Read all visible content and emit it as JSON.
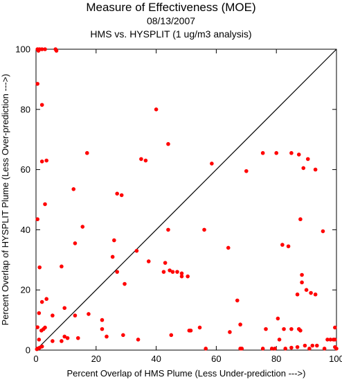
{
  "chart_data": {
    "type": "scatter",
    "title": "Measure of Effectiveness (MOE)",
    "subtitle_date": "08/13/2007",
    "subtitle": "HMS vs. HYSPLIT  (1 ug/m3 analysis)",
    "xlabel": "Percent Overlap of HMS Plume (Less Under-prediction --->)",
    "ylabel": "Percent Overlap of HYSPLIT Plume (Less Over-prediction --->)",
    "xlim": [
      0,
      100
    ],
    "ylim": [
      0,
      100
    ],
    "xticks": [
      "0",
      "20",
      "40",
      "60",
      "80",
      "100"
    ],
    "yticks": [
      "0",
      "20",
      "40",
      "60",
      "80",
      "100"
    ],
    "grid": false,
    "reference_line": "y = x",
    "marker_color": "#ff0000",
    "line_color": "#000000",
    "points": [
      [
        0.5,
        100
      ],
      [
        0.8,
        99.5
      ],
      [
        1.2,
        100
      ],
      [
        2.0,
        100
      ],
      [
        3.0,
        100
      ],
      [
        6.5,
        100
      ],
      [
        6.8,
        99.5
      ],
      [
        0.5,
        88.5
      ],
      [
        2.0,
        81.5
      ],
      [
        2.0,
        62.7
      ],
      [
        3.5,
        63.0
      ],
      [
        3.0,
        48.5
      ],
      [
        0.5,
        43.5
      ],
      [
        1.2,
        27.5
      ],
      [
        2.0,
        16.0
      ],
      [
        3.5,
        17.0
      ],
      [
        1.0,
        12.3
      ],
      [
        0.5,
        7.6
      ],
      [
        1.8,
        6.5
      ],
      [
        2.5,
        7.0
      ],
      [
        3.0,
        7.5
      ],
      [
        1.0,
        3.5
      ],
      [
        0.5,
        0.5
      ],
      [
        1.2,
        0.8
      ],
      [
        2.0,
        1.2
      ],
      [
        0.3,
        0.3
      ],
      [
        5.5,
        11.5
      ],
      [
        5.5,
        3.0
      ],
      [
        8.5,
        27.8
      ],
      [
        8.5,
        3.0
      ],
      [
        9.5,
        14.0
      ],
      [
        9.5,
        4.5
      ],
      [
        10.5,
        4.0
      ],
      [
        12.5,
        53.5
      ],
      [
        13.0,
        35.5
      ],
      [
        13.0,
        11.5
      ],
      [
        14.0,
        4.0
      ],
      [
        15.5,
        41.0
      ],
      [
        17.0,
        65.5
      ],
      [
        17.5,
        12.0
      ],
      [
        22.0,
        10.0
      ],
      [
        22.0,
        7.0
      ],
      [
        23.5,
        4.5
      ],
      [
        25.5,
        31.0
      ],
      [
        26.0,
        36.5
      ],
      [
        27.0,
        52.0
      ],
      [
        27.0,
        26.0
      ],
      [
        28.5,
        51.5
      ],
      [
        29.0,
        5.0
      ],
      [
        29.5,
        22.0
      ],
      [
        33.5,
        33.0
      ],
      [
        34.0,
        3.5
      ],
      [
        35.0,
        63.5
      ],
      [
        36.5,
        63.0
      ],
      [
        37.5,
        29.5
      ],
      [
        40.0,
        80.0
      ],
      [
        42.5,
        26.0
      ],
      [
        43.0,
        29.0
      ],
      [
        44.0,
        68.5
      ],
      [
        44.0,
        40.0
      ],
      [
        44.5,
        26.5
      ],
      [
        45.0,
        5.0
      ],
      [
        45.5,
        26.0
      ],
      [
        47.0,
        26.0
      ],
      [
        48.5,
        24.5
      ],
      [
        48.5,
        25.5
      ],
      [
        50.5,
        24.5
      ],
      [
        51.0,
        6.5
      ],
      [
        51.5,
        6.5
      ],
      [
        54.5,
        7.5
      ],
      [
        56.0,
        40.0
      ],
      [
        56.5,
        0.5
      ],
      [
        58.5,
        62.0
      ],
      [
        64.0,
        34.0
      ],
      [
        64.5,
        6.0
      ],
      [
        67.0,
        16.5
      ],
      [
        68.0,
        8.5
      ],
      [
        68.0,
        0.5
      ],
      [
        68.5,
        0.5
      ],
      [
        70.0,
        59.5
      ],
      [
        75.5,
        65.5
      ],
      [
        76.5,
        7.0
      ],
      [
        75.5,
        0.5
      ],
      [
        78.5,
        0.5
      ],
      [
        79.5,
        0.5
      ],
      [
        80.0,
        65.5
      ],
      [
        80.5,
        10.5
      ],
      [
        81.0,
        3.5
      ],
      [
        82.0,
        35.0
      ],
      [
        82.5,
        7.0
      ],
      [
        83.0,
        0.5
      ],
      [
        84.0,
        34.5
      ],
      [
        85.0,
        65.5
      ],
      [
        85.0,
        7.0
      ],
      [
        85.0,
        0.8
      ],
      [
        87.0,
        18.5
      ],
      [
        87.0,
        1.0
      ],
      [
        87.5,
        65.0
      ],
      [
        87.5,
        7.0
      ],
      [
        88.0,
        43.5
      ],
      [
        88.0,
        6.5
      ],
      [
        88.5,
        25.0
      ],
      [
        88.5,
        22.5
      ],
      [
        89.0,
        60.5
      ],
      [
        89.5,
        1.5
      ],
      [
        90.0,
        20.0
      ],
      [
        90.5,
        63.5
      ],
      [
        91.0,
        0.5
      ],
      [
        91.5,
        19.0
      ],
      [
        92.0,
        1.5
      ],
      [
        93.0,
        60.0
      ],
      [
        93.0,
        18.5
      ],
      [
        93.5,
        1.5
      ],
      [
        95.5,
        39.5
      ],
      [
        96.0,
        0.5
      ],
      [
        97.0,
        3.5
      ],
      [
        98.0,
        3.5
      ],
      [
        99.0,
        3.5
      ],
      [
        99.5,
        7.5
      ],
      [
        99.5,
        3.5
      ],
      [
        99.5,
        1.0
      ],
      [
        100,
        0.5
      ]
    ]
  }
}
